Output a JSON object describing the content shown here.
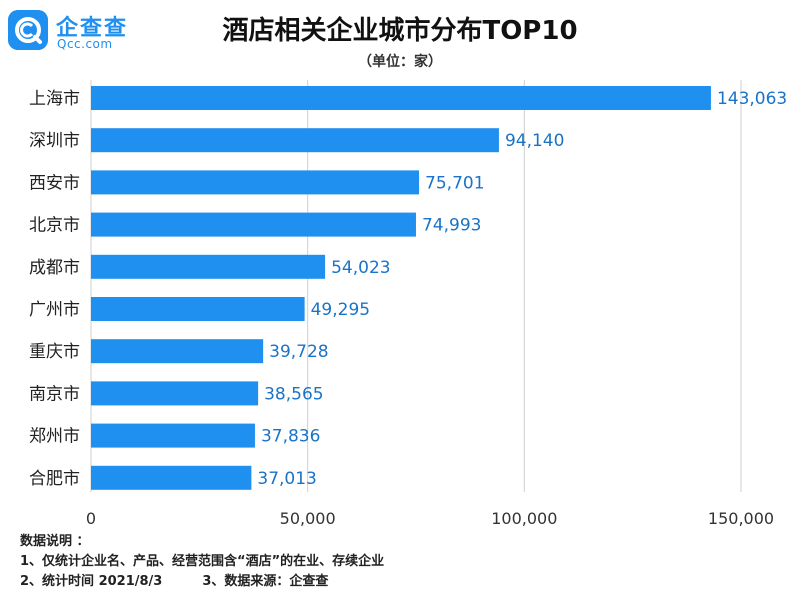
{
  "logo": {
    "icon": "qcc-logo-icon",
    "name_cn": "企查查",
    "name_en": "Qcc.com",
    "color": "#1f8ff0"
  },
  "title": "酒店相关企业城市分布TOP10",
  "subtitle": "（单位：家）",
  "chart_data": {
    "type": "bar",
    "orientation": "horizontal",
    "categories": [
      "上海市",
      "深圳市",
      "西安市",
      "北京市",
      "成都市",
      "广州市",
      "重庆市",
      "南京市",
      "郑州市",
      "合肥市"
    ],
    "values": [
      143063,
      94140,
      75701,
      74993,
      54023,
      49295,
      39728,
      38565,
      37836,
      37013
    ],
    "value_labels": [
      "143,063",
      "94,140",
      "75,701",
      "74,993",
      "54,023",
      "49,295",
      "39,728",
      "38,565",
      "37,836",
      "37,013"
    ],
    "xlim": [
      0,
      150000
    ],
    "xticks": [
      0,
      50000,
      100000,
      150000
    ],
    "xtick_labels": [
      "0",
      "50,000",
      "100,000",
      "150,000"
    ],
    "grid": true,
    "bar_color": "#1f8ff0",
    "label_color": "#1a73c8"
  },
  "notes": {
    "heading": "数据说明 ：",
    "line1": "1、仅统计企业名、产品、经营范围含“酒店”的在业、存续企业",
    "line2a": "2、统计时间  2021/8/3",
    "line2b": "3、数据来源：企查查"
  }
}
